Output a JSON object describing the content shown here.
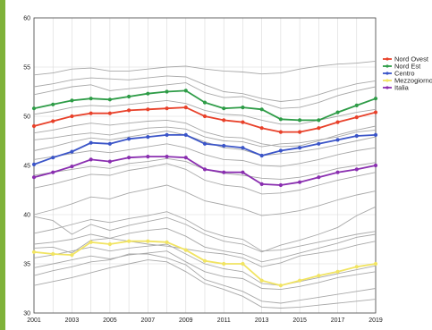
{
  "chart_data": {
    "type": "line",
    "title": "",
    "xlabel": "",
    "ylabel": "",
    "x": [
      2001,
      2002,
      2003,
      2004,
      2005,
      2006,
      2007,
      2008,
      2009,
      2010,
      2011,
      2012,
      2013,
      2014,
      2015,
      2016,
      2017,
      2018,
      2019
    ],
    "xticks": [
      "2001",
      "2003",
      "2005",
      "2007",
      "2009",
      "2011",
      "2013",
      "2015",
      "2017",
      "2019"
    ],
    "xlim": [
      2001,
      2019
    ],
    "ylim": [
      30,
      60
    ],
    "yticks": [
      30,
      35,
      40,
      45,
      50,
      55,
      60
    ],
    "grid": true,
    "legend_position": "right",
    "series": [
      {
        "name": "Nord Ovest",
        "color": "#e8412a",
        "values": [
          49.0,
          49.5,
          50.0,
          50.3,
          50.3,
          50.6,
          50.7,
          50.8,
          50.9,
          50.0,
          49.6,
          49.4,
          48.8,
          48.4,
          48.4,
          48.8,
          49.4,
          49.9,
          50.4
        ]
      },
      {
        "name": "Nord Est",
        "color": "#2e9c47",
        "values": [
          50.8,
          51.2,
          51.6,
          51.8,
          51.7,
          52.0,
          52.3,
          52.5,
          52.6,
          51.4,
          50.8,
          50.9,
          50.7,
          49.7,
          49.6,
          49.6,
          50.4,
          51.1,
          51.8
        ]
      },
      {
        "name": "Centro",
        "color": "#3b55c8",
        "values": [
          45.1,
          45.8,
          46.4,
          47.3,
          47.2,
          47.7,
          47.9,
          48.1,
          48.1,
          47.2,
          47.0,
          46.8,
          46.0,
          46.5,
          46.8,
          47.2,
          47.6,
          48.0,
          48.1
        ]
      },
      {
        "name": "Mezzogiorno",
        "color": "#f1e462",
        "values": [
          36.2,
          36.0,
          35.9,
          37.2,
          37.0,
          37.3,
          37.3,
          37.2,
          36.4,
          35.3,
          35.0,
          35.0,
          33.3,
          32.8,
          33.3,
          33.8,
          34.2,
          34.7,
          35.0
        ]
      },
      {
        "name": "Italia",
        "color": "#8a2fb0",
        "values": [
          43.8,
          44.3,
          44.9,
          45.6,
          45.4,
          45.8,
          45.9,
          45.9,
          45.8,
          44.6,
          44.3,
          44.3,
          43.1,
          43.0,
          43.3,
          43.8,
          44.3,
          44.6,
          45.0
        ]
      }
    ],
    "background_series": [
      [
        54.2,
        54.4,
        54.8,
        54.9,
        54.6,
        54.6,
        54.8,
        55.0,
        55.1,
        54.8,
        54.6,
        54.5,
        54.3,
        54.4,
        54.8,
        55.1,
        55.3,
        55.4,
        55.6
      ],
      [
        53.0,
        53.3,
        53.7,
        53.9,
        53.8,
        53.7,
        53.9,
        54.1,
        54.0,
        53.2,
        52.5,
        52.3,
        51.8,
        51.5,
        51.7,
        52.2,
        52.8,
        53.3,
        53.6
      ],
      [
        52.2,
        52.6,
        53.0,
        53.2,
        52.6,
        52.8,
        53.0,
        53.2,
        53.4,
        52.4,
        51.9,
        52.0,
        51.4,
        50.8,
        50.9,
        51.4,
        52.1,
        52.6,
        53.0
      ],
      [
        50.2,
        50.5,
        50.9,
        51.1,
        51.0,
        51.2,
        51.4,
        51.6,
        51.3,
        50.6,
        50.2,
        50.1,
        49.6,
        49.2,
        49.2,
        49.6,
        50.0,
        50.4,
        50.7
      ],
      [
        48.3,
        48.6,
        49.0,
        49.3,
        49.1,
        49.3,
        49.5,
        49.6,
        49.3,
        48.4,
        47.9,
        47.8,
        47.2,
        46.9,
        47.0,
        47.5,
        48.1,
        48.6,
        49.0
      ],
      [
        47.6,
        47.8,
        48.1,
        48.3,
        48.1,
        48.5,
        48.8,
        48.9,
        48.7,
        47.9,
        47.5,
        47.4,
        46.9,
        47.2,
        47.3,
        47.6,
        47.9,
        48.4,
        48.6
      ],
      [
        46.5,
        46.9,
        47.4,
        47.8,
        47.6,
        47.9,
        48.2,
        48.5,
        48.1,
        47.4,
        46.8,
        46.6,
        46.0,
        46.2,
        46.4,
        46.7,
        47.1,
        47.5,
        47.9
      ],
      [
        45.6,
        45.9,
        46.2,
        46.5,
        46.3,
        46.6,
        46.9,
        47.2,
        46.8,
        46.1,
        45.6,
        45.5,
        45.0,
        44.9,
        45.2,
        45.6,
        46.1,
        46.5,
        46.8
      ],
      [
        44.0,
        44.3,
        44.6,
        44.9,
        44.7,
        45.2,
        45.4,
        45.7,
        45.4,
        44.6,
        44.2,
        44.0,
        43.7,
        43.6,
        43.8,
        44.2,
        44.7,
        45.0,
        45.3
      ],
      [
        42.7,
        43.1,
        43.6,
        44.1,
        44.0,
        44.5,
        44.8,
        45.2,
        44.6,
        43.5,
        43.0,
        42.8,
        42.1,
        42.2,
        42.5,
        43.0,
        43.5,
        43.9,
        44.3
      ],
      [
        40.0,
        40.5,
        41.1,
        41.8,
        41.6,
        42.2,
        42.6,
        43.0,
        42.3,
        41.4,
        41.0,
        40.6,
        39.9,
        40.1,
        40.4,
        40.9,
        41.5,
        42.0,
        42.4
      ],
      [
        39.8,
        39.4,
        38.0,
        39.0,
        38.4,
        38.9,
        39.3,
        39.7,
        39.0,
        38.0,
        37.3,
        37.0,
        36.2,
        36.9,
        37.4,
        38.0,
        38.7,
        39.9,
        40.8
      ],
      [
        38.1,
        38.5,
        39.0,
        39.5,
        39.2,
        39.6,
        39.9,
        40.3,
        39.5,
        38.4,
        37.8,
        37.5,
        36.3,
        36.4,
        36.8,
        37.2,
        37.6,
        38.0,
        38.3
      ],
      [
        37.0,
        37.2,
        37.5,
        38.0,
        37.6,
        38.1,
        38.4,
        38.6,
        37.8,
        36.7,
        36.3,
        36.0,
        35.2,
        35.6,
        36.1,
        36.6,
        37.1,
        37.7,
        38.0
      ],
      [
        36.6,
        36.7,
        36.1,
        37.4,
        37.6,
        37.3,
        37.0,
        36.8,
        36.5,
        36.2,
        36.0,
        35.6,
        34.7,
        35.1,
        35.8,
        36.1,
        36.4,
        36.9,
        37.3
      ],
      [
        35.6,
        35.9,
        36.3,
        36.7,
        36.3,
        36.6,
        36.8,
        37.0,
        36.0,
        35.0,
        34.5,
        34.2,
        33.0,
        32.8,
        33.2,
        33.6,
        34.0,
        34.4,
        34.8
      ],
      [
        34.6,
        35.0,
        35.4,
        35.8,
        35.5,
        35.9,
        36.1,
        36.3,
        35.2,
        34.2,
        33.7,
        33.5,
        32.5,
        32.4,
        32.7,
        33.1,
        33.6,
        33.9,
        34.2
      ],
      [
        33.8,
        34.3,
        34.7,
        35.2,
        35.4,
        36.0,
        36.0,
        35.6,
        34.9,
        33.4,
        32.8,
        32.2,
        31.2,
        31.0,
        31.3,
        31.6,
        31.9,
        32.2,
        32.5
      ],
      [
        32.8,
        33.2,
        33.6,
        34.1,
        34.6,
        35.0,
        35.4,
        35.2,
        34.2,
        33.0,
        32.4,
        31.7,
        30.6,
        30.5,
        30.6,
        30.8,
        31.0,
        31.2,
        31.4
      ]
    ],
    "background_color": "#a8a8a8"
  }
}
